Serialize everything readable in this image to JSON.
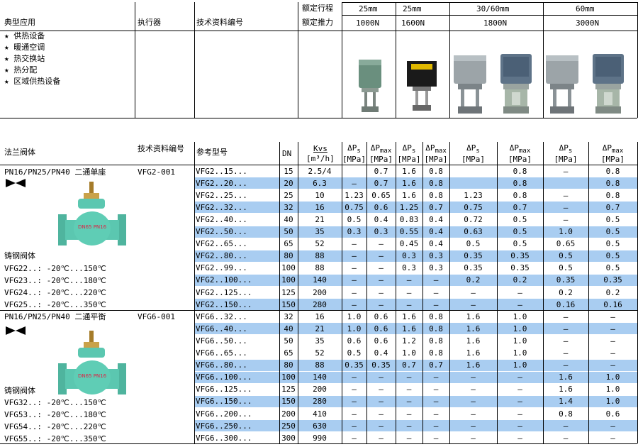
{
  "header": {
    "col_app": "典型应用",
    "col_actuator": "执行器",
    "col_doc": "技术资料编号",
    "rated_stroke_label": "额定行程",
    "rated_force_label": "额定推力",
    "strokes": [
      "25mm",
      "25mm",
      "30/60mm",
      "60mm"
    ],
    "forces": [
      "1000N",
      "1600N",
      "1800N",
      "3000N"
    ]
  },
  "applications": [
    "★  供热设备",
    "★  暖通空调",
    "★  热交换站",
    "★  热分配",
    "★  区域供热设备"
  ],
  "colors": {
    "band": "#a9cdf1",
    "valve_body": "#5bc7b0",
    "grid": "#000000"
  },
  "table": {
    "headers": {
      "valve": "法兰阀体",
      "doc": "技术资料编号",
      "model": "参考型号",
      "dn": "DN",
      "kvs": "Kvs",
      "kvs_unit": "[m³/h]",
      "dp_symbol": "ΔP",
      "sub_s": "s",
      "sub_max": "max",
      "mpa": "[MPa]"
    },
    "sections": [
      {
        "title": "PN16/PN25/PN40 二通单座",
        "doc": "VFG2-001",
        "body_label": "DN65 PN16",
        "cast_label": "铸钢阀体",
        "temps": [
          "VFG22..: -20℃...150℃",
          "VFG23..: -20℃...180℃",
          "VFG24..: -20℃...220℃",
          "VFG25..: -20℃...350℃"
        ],
        "rows": [
          [
            "VFG2..15...",
            "15",
            "2.5/4",
            "",
            "0.7",
            "1.6",
            "0.8",
            "",
            "0.8",
            "–",
            "0.8"
          ],
          [
            "VFG2..20...",
            "20",
            "6.3",
            "–",
            "0.7",
            "1.6",
            "0.8",
            "",
            "0.8",
            "",
            "0.8"
          ],
          [
            "VFG2..25...",
            "25",
            "10",
            "1.23",
            "0.65",
            "1.6",
            "0.8",
            "1.23",
            "0.8",
            "–",
            "0.8"
          ],
          [
            "VFG2..32...",
            "32",
            "16",
            "0.75",
            "0.6",
            "1.25",
            "0.7",
            "0.75",
            "0.7",
            "–",
            "0.7"
          ],
          [
            "VFG2..40...",
            "40",
            "21",
            "0.5",
            "0.4",
            "0.83",
            "0.4",
            "0.72",
            "0.5",
            "–",
            "0.5"
          ],
          [
            "VFG2..50...",
            "50",
            "35",
            "0.3",
            "0.3",
            "0.55",
            "0.4",
            "0.63",
            "0.5",
            "1.0",
            "0.5"
          ],
          [
            "VFG2..65...",
            "65",
            "52",
            "–",
            "–",
            "0.45",
            "0.4",
            "0.5",
            "0.5",
            "0.65",
            "0.5"
          ],
          [
            "VFG2..80...",
            "80",
            "88",
            "–",
            "–",
            "0.3",
            "0.3",
            "0.35",
            "0.35",
            "0.5",
            "0.5"
          ],
          [
            "VFG2..99...",
            "100",
            "88",
            "–",
            "–",
            "0.3",
            "0.3",
            "0.35",
            "0.35",
            "0.5",
            "0.5"
          ],
          [
            "VFG2..100...",
            "100",
            "140",
            "–",
            "–",
            "–",
            "–",
            "0.2",
            "0.2",
            "0.35",
            "0.35"
          ],
          [
            "VFG2..125...",
            "125",
            "200",
            "–",
            "–",
            "–",
            "–",
            "–",
            "–",
            "0.2",
            "0.2"
          ],
          [
            "VFG2..150...",
            "150",
            "280",
            "–",
            "–",
            "–",
            "–",
            "–",
            "–",
            "0.16",
            "0.16"
          ]
        ]
      },
      {
        "title": "PN16/PN25/PN40 二通平衡",
        "doc": "VFG6-001",
        "body_label": "DN65 PN16",
        "cast_label": "铸钢阀体",
        "temps": [
          "VFG32..: -20℃...150℃",
          "VFG53..: -20℃...180℃",
          "VFG54..: -20℃...220℃",
          "VFG55..: -20℃...350℃"
        ],
        "rows": [
          [
            "VFG6..32...",
            "32",
            "16",
            "1.0",
            "0.6",
            "1.6",
            "0.8",
            "1.6",
            "1.0",
            "–",
            "–"
          ],
          [
            "VFG6..40...",
            "40",
            "21",
            "1.0",
            "0.6",
            "1.6",
            "0.8",
            "1.6",
            "1.0",
            "–",
            "–"
          ],
          [
            "VFG6..50...",
            "50",
            "35",
            "0.6",
            "0.6",
            "1.2",
            "0.8",
            "1.6",
            "1.0",
            "–",
            "–"
          ],
          [
            "VFG6..65...",
            "65",
            "52",
            "0.5",
            "0.4",
            "1.0",
            "0.8",
            "1.6",
            "1.0",
            "–",
            "–"
          ],
          [
            "VFG6..80...",
            "80",
            "88",
            "0.35",
            "0.35",
            "0.7",
            "0.7",
            "1.6",
            "1.0",
            "–",
            "–"
          ],
          [
            "VFG6..100...",
            "100",
            "140",
            "–",
            "–",
            "–",
            "–",
            "–",
            "–",
            "1.6",
            "1.0"
          ],
          [
            "VFG6..125...",
            "125",
            "200",
            "–",
            "–",
            "–",
            "–",
            "–",
            "–",
            "1.6",
            "1.0"
          ],
          [
            "VFG6..150...",
            "150",
            "280",
            "–",
            "–",
            "–",
            "–",
            "–",
            "–",
            "1.4",
            "1.0"
          ],
          [
            "VFG6..200...",
            "200",
            "410",
            "–",
            "–",
            "–",
            "–",
            "–",
            "–",
            "0.8",
            "0.6"
          ],
          [
            "VFG6..250...",
            "250",
            "630",
            "–",
            "–",
            "–",
            "–",
            "–",
            "–",
            "–",
            "–"
          ],
          [
            "VFG6..300...",
            "300",
            "990",
            "–",
            "–",
            "–",
            "–",
            "–",
            "–",
            "–",
            "–"
          ]
        ]
      }
    ]
  }
}
